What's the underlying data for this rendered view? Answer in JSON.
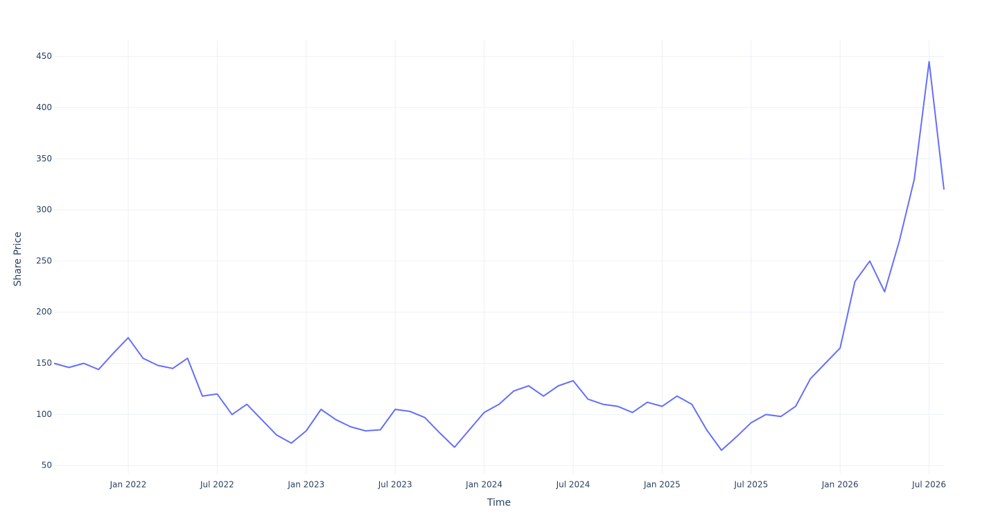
{
  "chart_data": {
    "type": "line",
    "x_label": "Time",
    "y_label": "Share Price",
    "x": [
      "2021-08",
      "2021-09",
      "2021-10",
      "2021-11",
      "2021-12",
      "2022-01",
      "2022-02",
      "2022-03",
      "2022-04",
      "2022-05",
      "2022-06",
      "2022-07",
      "2022-08",
      "2022-09",
      "2022-10",
      "2022-11",
      "2022-12",
      "2023-01",
      "2023-02",
      "2023-03",
      "2023-04",
      "2023-05",
      "2023-06",
      "2023-07",
      "2023-08",
      "2023-09",
      "2023-10",
      "2023-11",
      "2023-12",
      "2024-01",
      "2024-02",
      "2024-03",
      "2024-04",
      "2024-05",
      "2024-06",
      "2024-07",
      "2024-08",
      "2024-09",
      "2024-10",
      "2024-11",
      "2024-12",
      "2025-01",
      "2025-02",
      "2025-03",
      "2025-04",
      "2025-05",
      "2025-06",
      "2025-07",
      "2025-08",
      "2025-09",
      "2025-10",
      "2025-11",
      "2025-12",
      "2026-01",
      "2026-02",
      "2026-03",
      "2026-04",
      "2026-05",
      "2026-06",
      "2026-07",
      "2026-08"
    ],
    "series": [
      {
        "color": "#636efa",
        "values": [
          150,
          146,
          150,
          144,
          160,
          175,
          155,
          148,
          145,
          155,
          118,
          120,
          100,
          110,
          95,
          80,
          72,
          84,
          105,
          95,
          88,
          84,
          85,
          105,
          103,
          97,
          82,
          68,
          85,
          102,
          110,
          123,
          128,
          118,
          128,
          133,
          115,
          110,
          108,
          102,
          112,
          108,
          118,
          110,
          85,
          65,
          78,
          92,
          100,
          98,
          108,
          135,
          150,
          165,
          230,
          250,
          220,
          270,
          330,
          445,
          320
        ]
      }
    ],
    "xlim": [
      "2021-08",
      "2026-08"
    ],
    "xticks": [
      {
        "value": "2022-01",
        "label": "Jan 2022"
      },
      {
        "value": "2022-07",
        "label": "Jul 2022"
      },
      {
        "value": "2023-01",
        "label": "Jan 2023"
      },
      {
        "value": "2023-07",
        "label": "Jul 2023"
      },
      {
        "value": "2024-01",
        "label": "Jan 2024"
      },
      {
        "value": "2024-07",
        "label": "Jul 2024"
      },
      {
        "value": "2025-01",
        "label": "Jan 2025"
      },
      {
        "value": "2025-07",
        "label": "Jul 2025"
      },
      {
        "value": "2026-01",
        "label": "Jan 2026"
      },
      {
        "value": "2026-07",
        "label": "Jul 2026"
      }
    ],
    "ylim": [
      42,
      466
    ],
    "yticks": [
      50,
      100,
      150,
      200,
      250,
      300,
      350,
      400,
      450
    ],
    "grid": true
  }
}
